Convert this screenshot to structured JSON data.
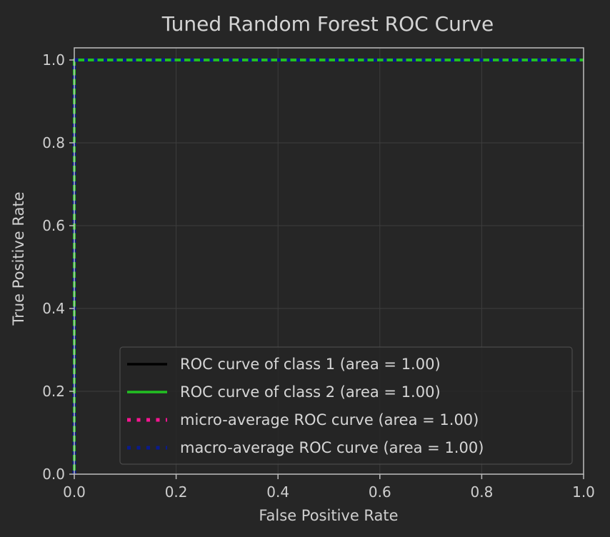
{
  "chart_data": {
    "type": "line",
    "title": "Tuned Random Forest ROC Curve",
    "xlabel": "False Positive Rate",
    "ylabel": "True Positive Rate",
    "xlim": [
      0.0,
      1.0
    ],
    "ylim": [
      0.0,
      1.0
    ],
    "x_ticks": [
      "0.0",
      "0.2",
      "0.4",
      "0.6",
      "0.8",
      "1.0"
    ],
    "y_ticks": [
      "0.0",
      "0.2",
      "0.4",
      "0.6",
      "0.8",
      "1.0"
    ],
    "grid": true,
    "legend_position": "lower-right",
    "series": [
      {
        "name": "ROC curve of class 1 (area = 1.00)",
        "color": "#000000",
        "style": "solid",
        "x": [
          0.0,
          0.0,
          1.0
        ],
        "y": [
          0.0,
          1.0,
          1.0
        ]
      },
      {
        "name": "ROC curve of class 2 (area = 1.00)",
        "color": "#22c022",
        "style": "solid",
        "x": [
          0.0,
          0.0,
          1.0
        ],
        "y": [
          0.0,
          1.0,
          1.0
        ]
      },
      {
        "name": "micro-average ROC curve (area = 1.00)",
        "color": "#ff1493",
        "style": "dotted",
        "x": [
          0.0,
          0.0,
          1.0
        ],
        "y": [
          0.0,
          1.0,
          1.0
        ]
      },
      {
        "name": "macro-average ROC curve (area = 1.00)",
        "color": "#0a1a8c",
        "style": "dotted",
        "x": [
          0.0,
          0.0,
          1.0
        ],
        "y": [
          0.0,
          1.0,
          1.0
        ]
      }
    ]
  }
}
